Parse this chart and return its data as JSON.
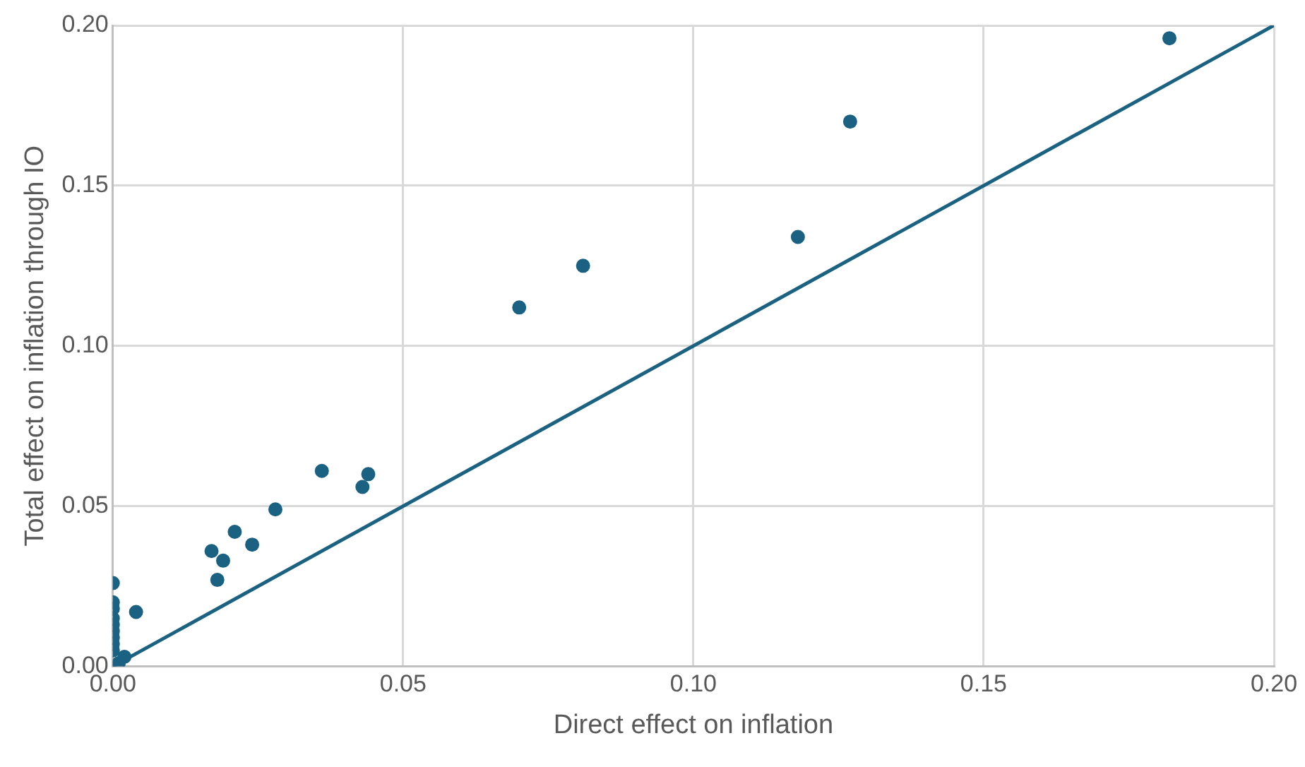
{
  "chart_data": {
    "type": "scatter",
    "xlabel": "Direct effect on inflation",
    "ylabel": "Total effect on inflation through IO",
    "xlim": [
      0,
      0.2
    ],
    "xticks": [
      {
        "value": 0,
        "label": "0.00"
      },
      {
        "value": 0.05,
        "label": "0.05"
      },
      {
        "value": 0.1,
        "label": "0.10"
      },
      {
        "value": 0.15,
        "label": "0.15"
      },
      {
        "value": 0.2,
        "label": "0.20"
      }
    ],
    "ylim": [
      0,
      0.2
    ],
    "yticks": [
      {
        "value": 0,
        "label": "0.00"
      },
      {
        "value": 0.05,
        "label": "0.05"
      },
      {
        "value": 0.1,
        "label": "0.10"
      },
      {
        "value": 0.15,
        "label": "0.15"
      },
      {
        "value": 0.2,
        "label": "0.20"
      }
    ],
    "grid": true,
    "legend": false,
    "marker": "circle",
    "series": [
      {
        "color": "#1a6182",
        "x": [
          0.182,
          0.127,
          0.118,
          0.081,
          0.07,
          0.036,
          0.044,
          0.043,
          0.028,
          0.021,
          0.024,
          0.017,
          0.019,
          0.018,
          0.004,
          0,
          0,
          0,
          0,
          0,
          0,
          0,
          0,
          0,
          0.002,
          0.001
        ],
        "values": [
          0.196,
          0.17,
          0.134,
          0.125,
          0.112,
          0.061,
          0.06,
          0.056,
          0.049,
          0.042,
          0.038,
          0.036,
          0.033,
          0.027,
          0.017,
          0.026,
          0.02,
          0.018,
          0.015,
          0.013,
          0.011,
          0.009,
          0.007,
          0.005,
          0.003,
          0.001
        ]
      },
      {
        "type": "line",
        "color": "#1a6182",
        "x": [
          0,
          0.2
        ],
        "values": [
          0,
          0.2
        ],
        "marker": "none",
        "line_style": "solid"
      }
    ]
  }
}
